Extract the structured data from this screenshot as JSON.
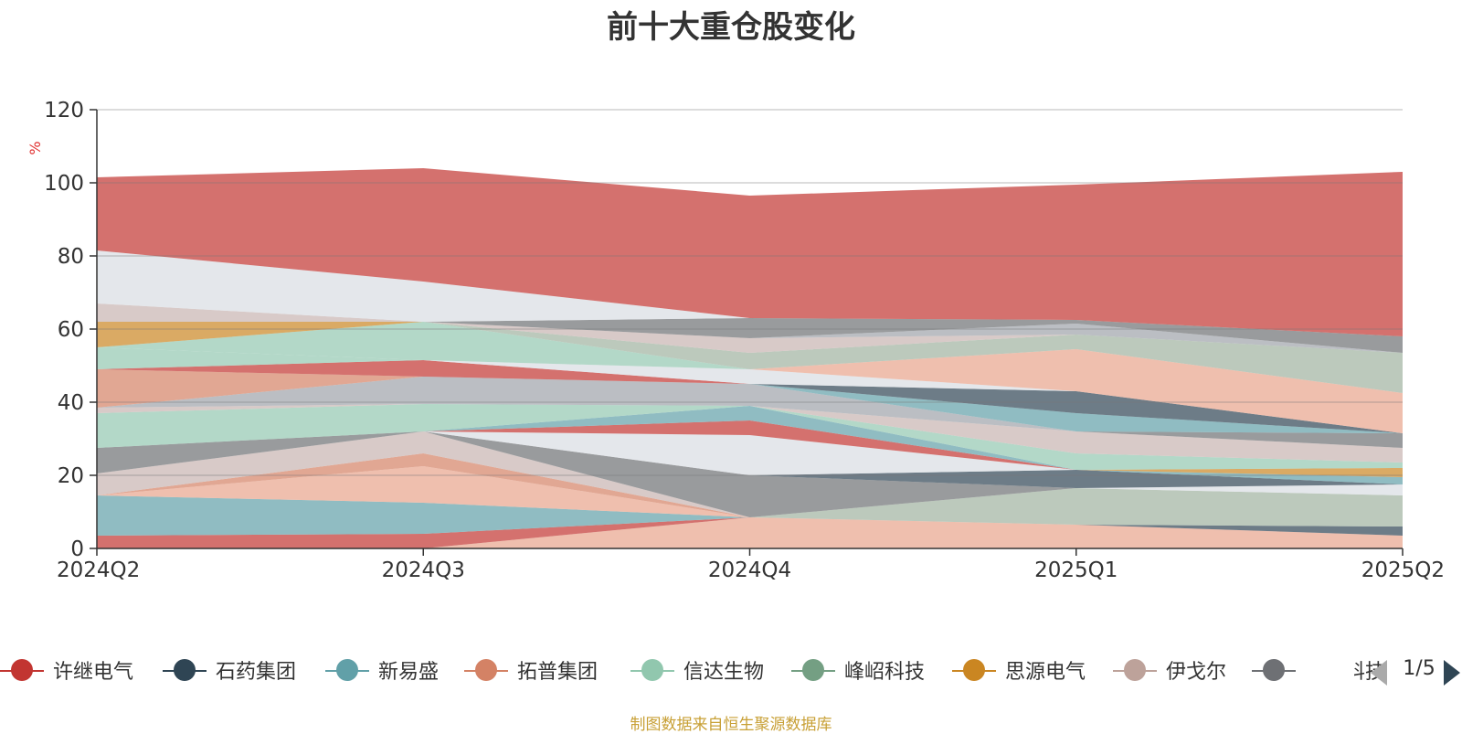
{
  "title": "前十大重仓股变化",
  "source_note": "制图数据来自恒生聚源数据库",
  "pager": {
    "text": "1/5"
  },
  "chart_data": {
    "type": "area",
    "stacked": true,
    "x": [
      "2024Q2",
      "2024Q3",
      "2024Q4",
      "2025Q1",
      "2025Q2"
    ],
    "ylabel": "%",
    "ylim": [
      0,
      120
    ],
    "yticks": [
      0,
      20,
      40,
      60,
      80,
      100,
      120
    ],
    "grid": true,
    "legend_position": "bottom",
    "series": [
      {
        "name": "",
        "color": "#e8a48c",
        "values": [
          0,
          0,
          8.5,
          6.5,
          3.5
        ]
      },
      {
        "name": "",
        "color": "#2f4554",
        "values": [
          0,
          0,
          0,
          0,
          2.5
        ]
      },
      {
        "name": "",
        "color": "#c23531",
        "values": [
          3.5,
          4,
          0,
          0,
          0
        ]
      },
      {
        "name": "",
        "color": "#61a0a8",
        "values": [
          11,
          8.5,
          0,
          0,
          0
        ]
      },
      {
        "name": "",
        "color": "#e8a48c",
        "values": [
          0,
          10,
          0,
          0,
          0
        ]
      },
      {
        "name": "",
        "color": "#d48265",
        "values": [
          0,
          3.5,
          0,
          0,
          0
        ]
      },
      {
        "name": "",
        "color": "#a0b2a0",
        "values": [
          0,
          0,
          0,
          10,
          8.5
        ]
      },
      {
        "name": "",
        "color": "#d8dde2",
        "values": [
          0,
          0,
          0,
          0,
          3
        ]
      },
      {
        "name": "",
        "color": "#c8b4b0",
        "values": [
          6,
          6,
          0,
          0,
          0
        ]
      },
      {
        "name": "",
        "color": "#6e7074",
        "values": [
          7,
          0,
          11.5,
          0,
          0
        ]
      },
      {
        "name": "",
        "color": "#2f4554",
        "values": [
          0,
          0,
          0,
          5,
          0
        ]
      },
      {
        "name": "",
        "color": "#61a0a8",
        "values": [
          0,
          0,
          0,
          0,
          2
        ]
      },
      {
        "name": "",
        "color": "#ca8622",
        "values": [
          0,
          0,
          0,
          0,
          2.5
        ]
      },
      {
        "name": "",
        "color": "#d8dde2",
        "values": [
          0,
          0,
          11,
          0,
          0
        ]
      },
      {
        "name": "",
        "color": "#c23531",
        "values": [
          0,
          0,
          4,
          0,
          0
        ]
      },
      {
        "name": "",
        "color": "#61a0a8",
        "values": [
          0,
          0,
          4,
          0,
          0
        ]
      },
      {
        "name": "",
        "color": "#93c8b0",
        "values": [
          0,
          0,
          0,
          4.5,
          1.5
        ]
      },
      {
        "name": "",
        "color": "#c8b4b0",
        "values": [
          0,
          0,
          0,
          6,
          4
        ]
      },
      {
        "name": "",
        "color": "#6e7074",
        "values": [
          0,
          0,
          0,
          0,
          4
        ]
      },
      {
        "name": "",
        "color": "#93c8b0",
        "values": [
          9.5,
          7.5,
          0,
          0,
          0
        ]
      },
      {
        "name": "",
        "color": "#c8b4b0",
        "values": [
          1.5,
          0,
          0,
          0,
          0
        ]
      },
      {
        "name": "",
        "color": "#9ea3aa",
        "values": [
          0,
          7.5,
          6,
          0,
          0
        ]
      },
      {
        "name": "",
        "color": "#61a0a8",
        "values": [
          0,
          0,
          0,
          5,
          0
        ]
      },
      {
        "name": "",
        "color": "#2f4554",
        "values": [
          0,
          0,
          0,
          6,
          0
        ]
      },
      {
        "name": "",
        "color": "#d48265",
        "values": [
          10.5,
          0,
          0,
          0,
          0
        ]
      },
      {
        "name": "",
        "color": "#c23531",
        "values": [
          0,
          4.5,
          0,
          0,
          0
        ]
      },
      {
        "name": "",
        "color": "#d8dde2",
        "values": [
          0,
          0,
          4,
          0,
          0
        ]
      },
      {
        "name": "",
        "color": "#e8a48c",
        "values": [
          0,
          0,
          0,
          11.5,
          11
        ]
      },
      {
        "name": "",
        "color": "#93c8b0",
        "values": [
          6,
          0,
          0,
          0,
          0
        ]
      },
      {
        "name": "",
        "color": "#93c8b0",
        "values": [
          0,
          10.5,
          0,
          0,
          0
        ]
      },
      {
        "name": "",
        "color": "#ca8622",
        "values": [
          7,
          0,
          0,
          0,
          0
        ]
      },
      {
        "name": "",
        "color": "#a0b2a0",
        "values": [
          0,
          0,
          4.5,
          4,
          11
        ]
      },
      {
        "name": "",
        "color": "#c8b4b0",
        "values": [
          5,
          0,
          4,
          0,
          0
        ]
      },
      {
        "name": "",
        "color": "#9ea3aa",
        "values": [
          0,
          0,
          0,
          3,
          0
        ]
      },
      {
        "name": "",
        "color": "#6e7074",
        "values": [
          0,
          0,
          5.5,
          1,
          4.5
        ]
      },
      {
        "name": "",
        "color": "#d8dde2",
        "values": [
          14.5,
          11,
          0,
          0,
          0
        ]
      },
      {
        "name": "",
        "color": "#c23531",
        "values": [
          20,
          31,
          33.5,
          37,
          45
        ]
      }
    ],
    "legend": [
      {
        "name": "许继电气",
        "color": "#c23531"
      },
      {
        "name": "石药集团",
        "color": "#2f4554"
      },
      {
        "name": "新易盛",
        "color": "#61a0a8"
      },
      {
        "name": "拓普集团",
        "color": "#d48265"
      },
      {
        "name": "信达生物",
        "color": "#91c7ae"
      },
      {
        "name": "峰岹科技",
        "color": "#749f83"
      },
      {
        "name": "思源电气",
        "color": "#ca8622"
      },
      {
        "name": "伊戈尔",
        "color": "#bda29a"
      },
      {
        "name": "北特科技",
        "color": "#6e7074"
      }
    ]
  }
}
